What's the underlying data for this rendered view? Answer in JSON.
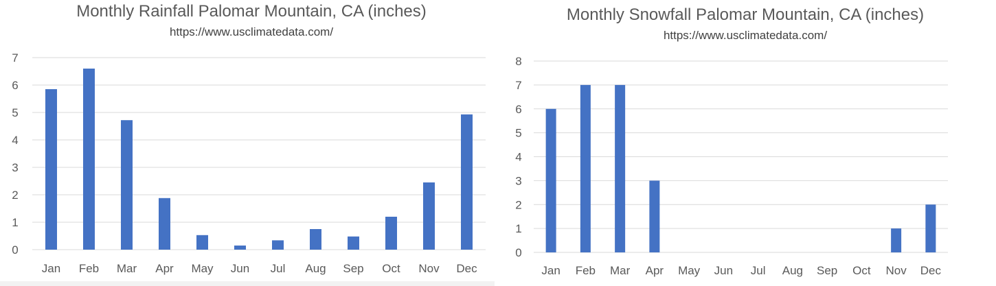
{
  "chart_data": [
    {
      "type": "bar",
      "title": "Monthly Rainfall Palomar Mountain, CA (inches)",
      "subtitle": "https://www.usclimatedata.com/",
      "categories": [
        "Jan",
        "Feb",
        "Mar",
        "Apr",
        "May",
        "Jun",
        "Jul",
        "Aug",
        "Sep",
        "Oct",
        "Nov",
        "Dec"
      ],
      "values": [
        5.85,
        6.6,
        4.72,
        1.88,
        0.53,
        0.15,
        0.34,
        0.75,
        0.48,
        1.2,
        2.45,
        4.93
      ],
      "yticks": [
        "0",
        "1",
        "2",
        "3",
        "4",
        "5",
        "6",
        "7"
      ],
      "ylim": [
        0,
        7
      ],
      "grid": true,
      "legend": "none",
      "color": "#4472C4"
    },
    {
      "type": "bar",
      "title": "Monthly Snowfall Palomar Mountain, CA (inches)",
      "subtitle": "https://www.usclimatedata.com/",
      "categories": [
        "Jan",
        "Feb",
        "Mar",
        "Apr",
        "May",
        "Jun",
        "Jul",
        "Aug",
        "Sep",
        "Oct",
        "Nov",
        "Dec"
      ],
      "values": [
        6,
        7,
        7,
        3,
        0,
        0,
        0,
        0,
        0,
        0,
        1,
        2
      ],
      "yticks": [
        "0",
        "1",
        "2",
        "3",
        "4",
        "5",
        "6",
        "7",
        "8"
      ],
      "ylim": [
        0,
        8
      ],
      "grid": true,
      "legend": "none",
      "color": "#4472C4"
    }
  ]
}
